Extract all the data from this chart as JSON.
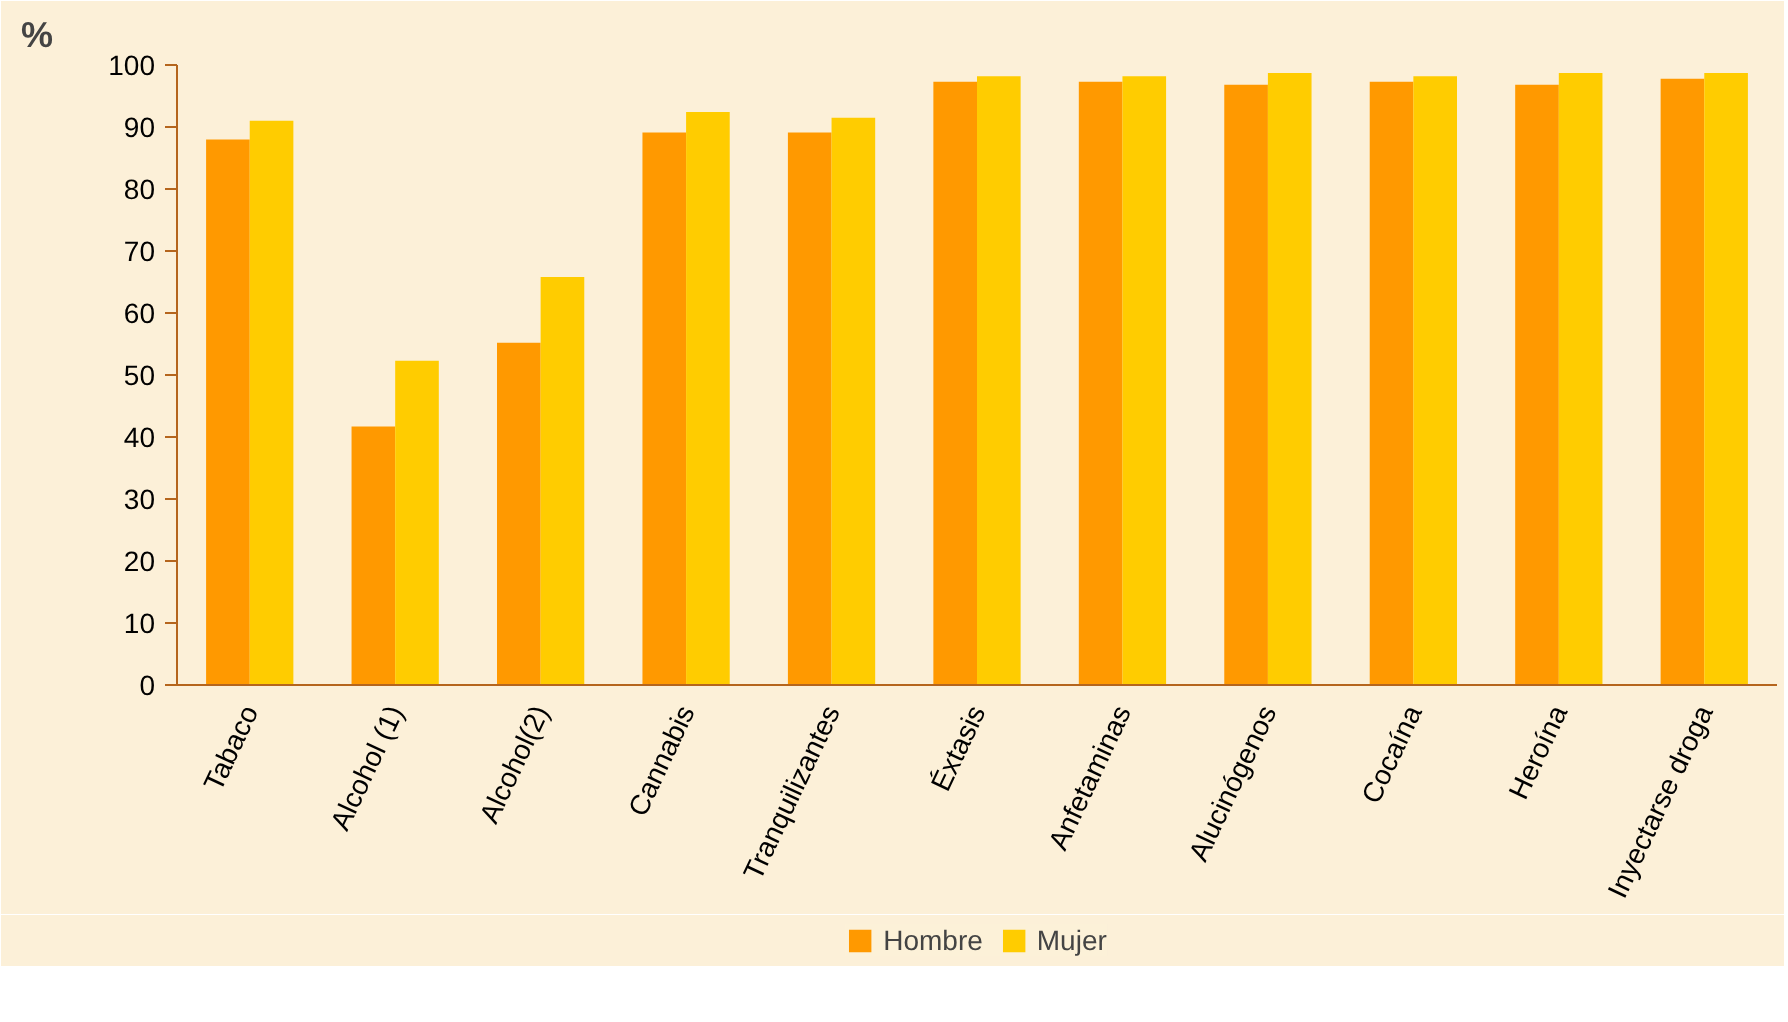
{
  "chart_data": {
    "type": "bar",
    "ylabel": "%",
    "categories": [
      "Tabaco",
      "Alcohol (1)",
      "Alcohol(2)",
      "Cannabis",
      "Tranquilizantes",
      "Éxtasis",
      "Anfetaminas",
      "Alucinógenos",
      "Cocaína",
      "Heroína",
      "Inyectarse droga"
    ],
    "series": [
      {
        "name": "Hombre",
        "color": "#ff9900",
        "values": [
          88,
          41.7,
          55.2,
          89.1,
          89.1,
          97.3,
          97.3,
          96.8,
          97.3,
          96.8,
          97.8
        ]
      },
      {
        "name": "Mujer",
        "color": "#ffcc00",
        "values": [
          91,
          52.3,
          65.8,
          92.4,
          91.5,
          98.2,
          98.2,
          98.7,
          98.2,
          98.7,
          98.7
        ]
      }
    ],
    "ylim": [
      0,
      100
    ],
    "yticks": [
      0,
      10,
      20,
      30,
      40,
      50,
      60,
      70,
      80,
      90,
      100
    ],
    "grid": false,
    "legend": "bottom"
  }
}
